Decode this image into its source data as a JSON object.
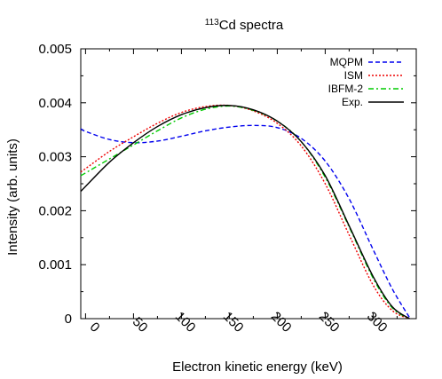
{
  "chart_data": {
    "type": "line",
    "title": {
      "superscript": "113",
      "text": "Cd spectra"
    },
    "xlabel": "Electron kinetic energy (keV)",
    "ylabel": "Intensity (arb. units)",
    "xlim": [
      -5,
      345
    ],
    "ylim": [
      0,
      0.005
    ],
    "xticks": [
      0,
      50,
      100,
      150,
      200,
      250,
      300
    ],
    "yticks": [
      0,
      0.001,
      0.002,
      0.003,
      0.004,
      0.005
    ],
    "ytick_labels": [
      "0",
      "0.001",
      "0.002",
      "0.003",
      "0.004",
      "0.005"
    ],
    "grid": false,
    "legend_position": "top-right",
    "series": [
      {
        "name": "MQPM",
        "color": "#0000ee",
        "dash": "dashed",
        "x": [
          -5,
          0,
          25,
          50,
          75,
          100,
          125,
          150,
          175,
          200,
          225,
          250,
          275,
          300,
          320,
          338
        ],
        "y": [
          0.00352,
          0.00347,
          0.00332,
          0.00326,
          0.00329,
          0.00338,
          0.00348,
          0.00355,
          0.00358,
          0.00354,
          0.00334,
          0.00292,
          0.00222,
          0.00128,
          0.00055,
          2e-05
        ]
      },
      {
        "name": "ISM",
        "color": "#ee0000",
        "dash": "dotted",
        "x": [
          -5,
          0,
          25,
          50,
          75,
          100,
          125,
          150,
          175,
          200,
          225,
          250,
          275,
          300,
          320,
          338
        ],
        "y": [
          0.00272,
          0.00278,
          0.0031,
          0.00337,
          0.00362,
          0.00382,
          0.00393,
          0.00395,
          0.00385,
          0.00362,
          0.0032,
          0.0025,
          0.00155,
          0.00062,
          0.00015,
          0.0
        ]
      },
      {
        "name": "IBFM-2",
        "color": "#00cc00",
        "dash": "dash-dot",
        "x": [
          -5,
          0,
          25,
          50,
          75,
          100,
          125,
          150,
          175,
          200,
          225,
          250,
          275,
          300,
          320,
          338
        ],
        "y": [
          0.00265,
          0.0027,
          0.00296,
          0.00322,
          0.00348,
          0.00372,
          0.00388,
          0.00394,
          0.00386,
          0.00366,
          0.00328,
          0.00262,
          0.0017,
          0.00075,
          0.0002,
          0.0
        ]
      },
      {
        "name": "Exp.",
        "color": "#000000",
        "dash": "solid",
        "x": [
          -5,
          0,
          25,
          50,
          75,
          100,
          125,
          150,
          175,
          200,
          225,
          250,
          275,
          300,
          320,
          338
        ],
        "y": [
          0.00236,
          0.00245,
          0.0029,
          0.00326,
          0.00356,
          0.00378,
          0.00391,
          0.00395,
          0.00387,
          0.00366,
          0.00328,
          0.00265,
          0.00172,
          0.00078,
          0.00022,
          0.0
        ]
      }
    ]
  }
}
